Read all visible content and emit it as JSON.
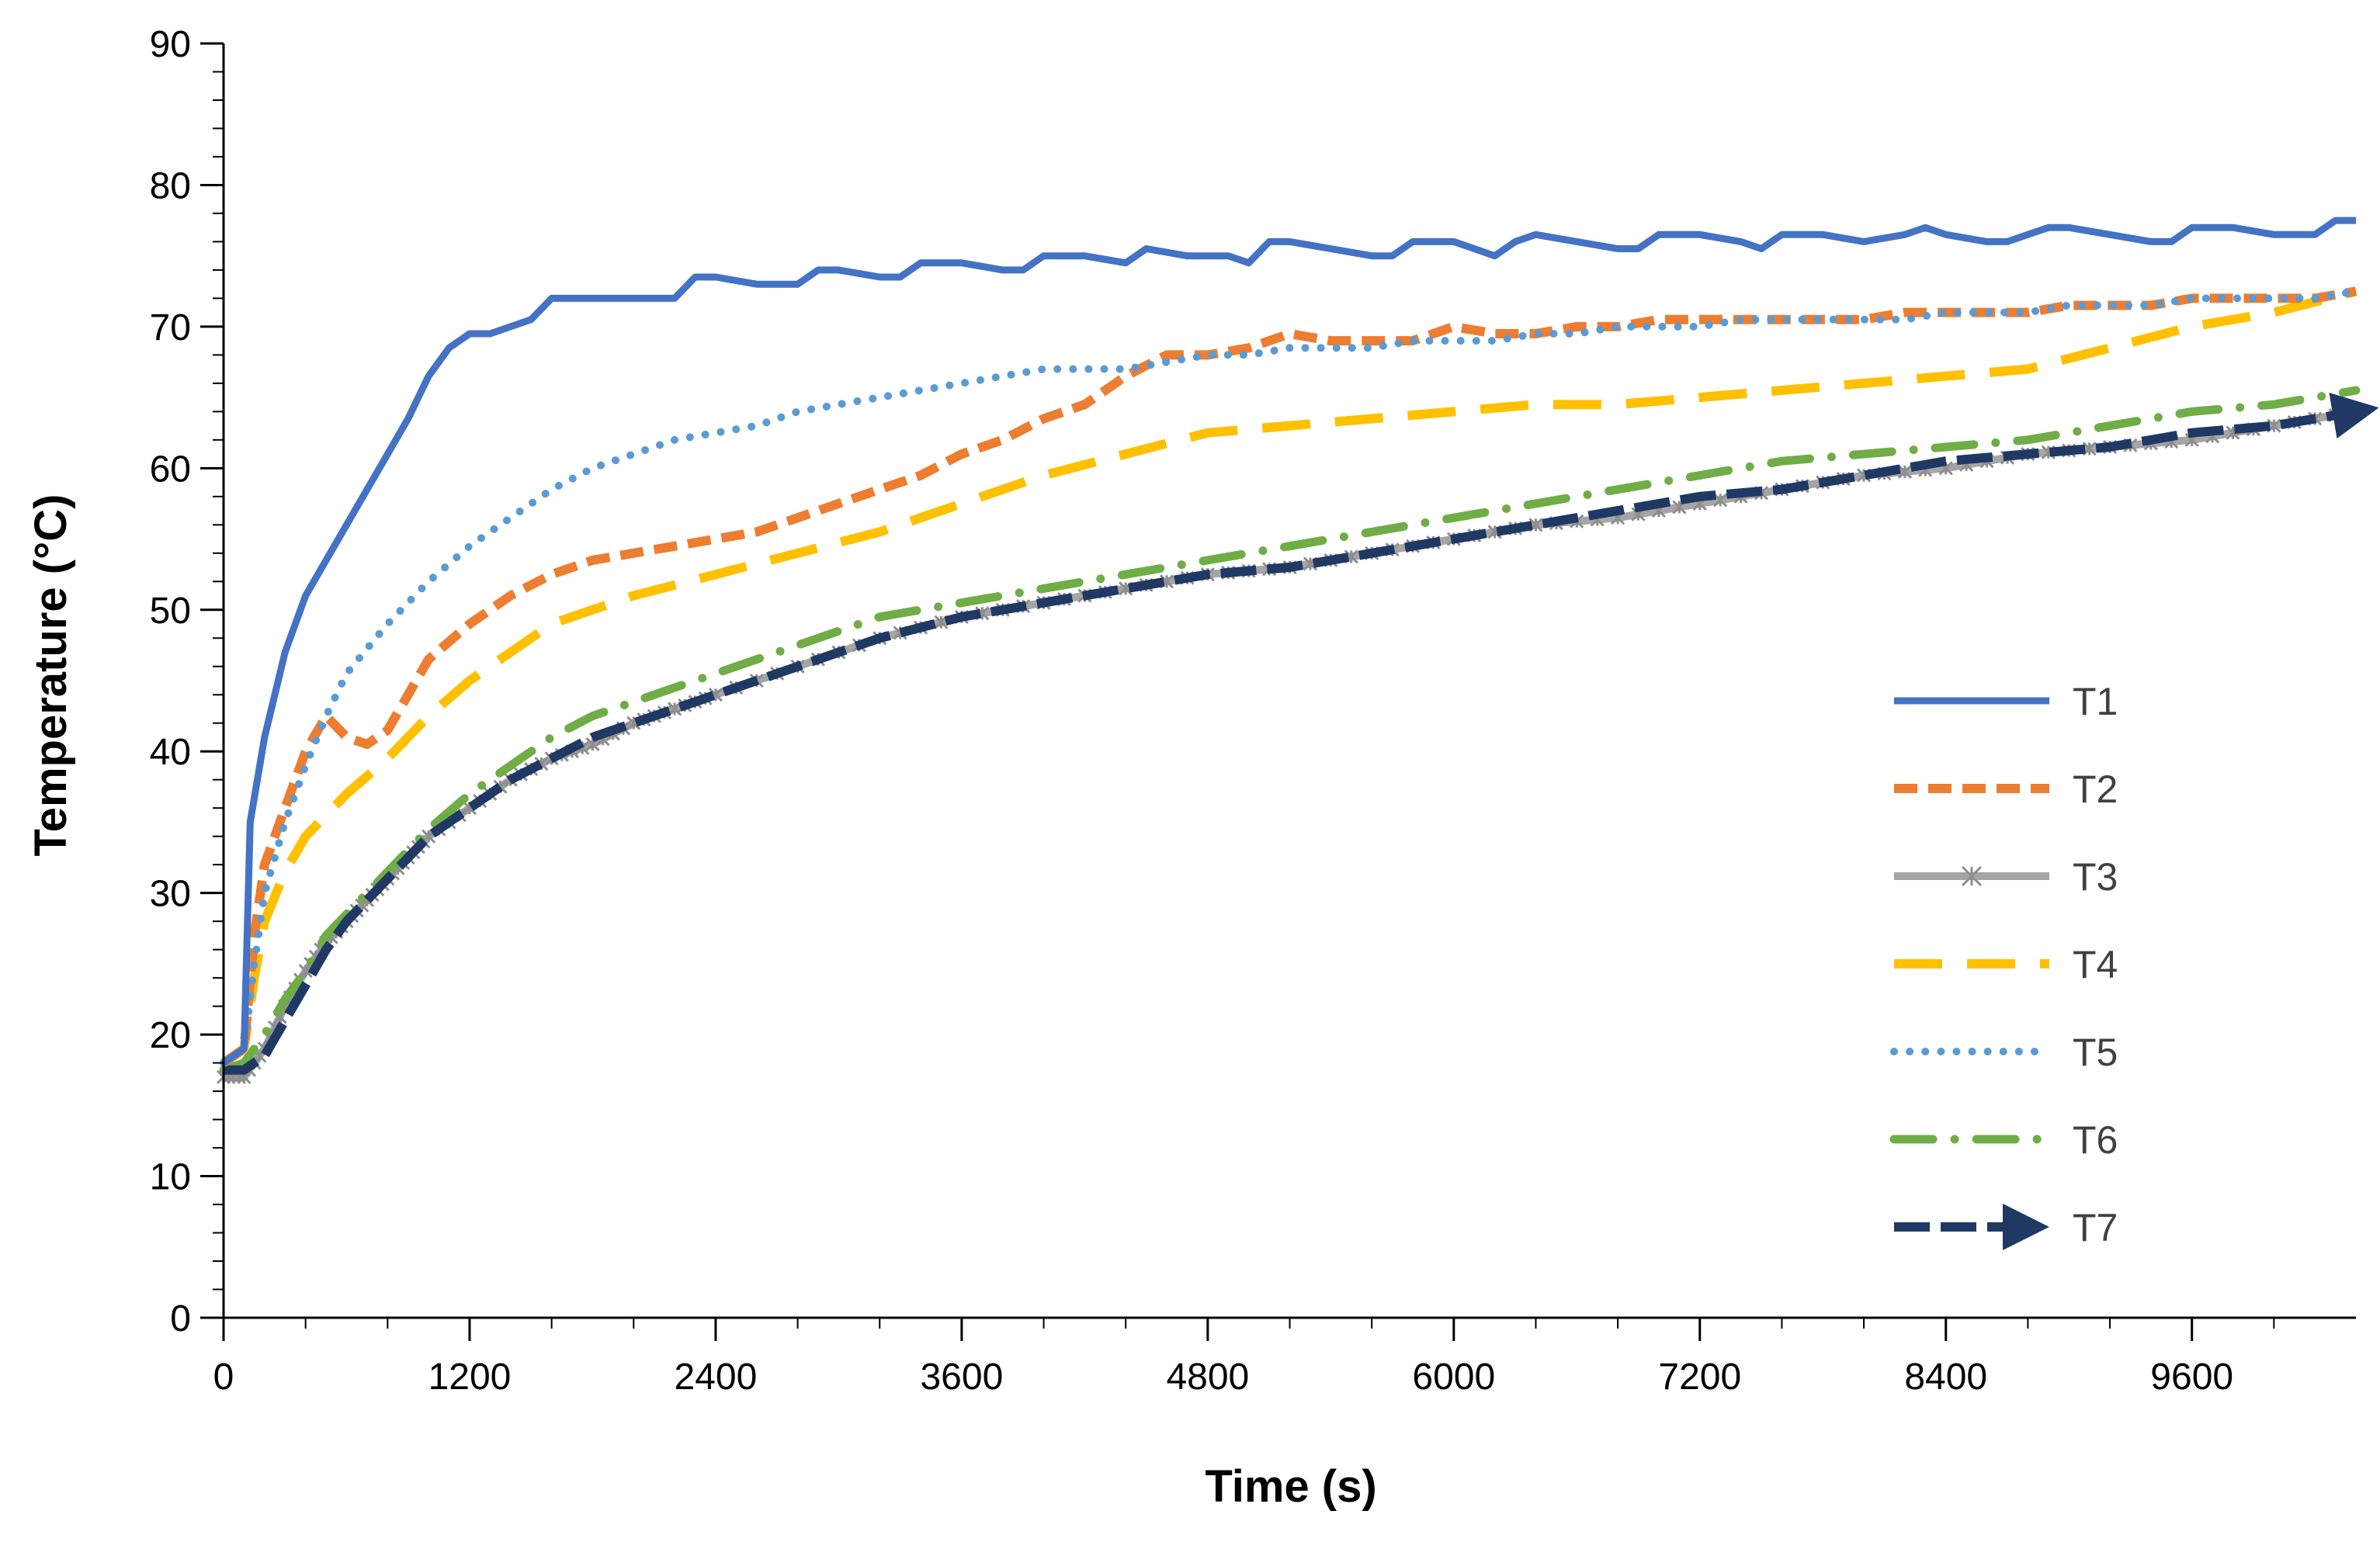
{
  "chart_data": {
    "type": "line",
    "title": "",
    "xlabel": "Time (s)",
    "ylabel": "Temperature (°C)",
    "xlim": [
      0,
      10400
    ],
    "ylim": [
      0,
      90
    ],
    "xticks": [
      0,
      1200,
      2400,
      3600,
      4800,
      6000,
      7200,
      8400,
      9600
    ],
    "yticks": [
      0,
      10,
      20,
      30,
      40,
      50,
      60,
      70,
      80,
      90
    ],
    "xtick_labels": [
      "0",
      "1200",
      "2400",
      "3600",
      "4800",
      "6000",
      "7200",
      "8400",
      "9600"
    ],
    "ytick_labels": [
      "0",
      "10",
      "20",
      "30",
      "40",
      "50",
      "60",
      "70",
      "80",
      "90"
    ],
    "grid": false,
    "legend_position": "right",
    "series": [
      {
        "name": "T1",
        "color": "#4472C4",
        "style": "solid",
        "marker": "none",
        "x": [
          0,
          100,
          130,
          200,
          300,
          400,
          500,
          600,
          700,
          800,
          900,
          1000,
          1100,
          1200,
          1300,
          1400,
          1500,
          1600,
          1700,
          1800,
          2000,
          2200,
          2300,
          2400,
          2600,
          2800,
          2900,
          3000,
          3200,
          3300,
          3400,
          3600,
          3800,
          3900,
          4000,
          4200,
          4400,
          4500,
          4700,
          4900,
          5000,
          5100,
          5200,
          5400,
          5600,
          5700,
          5800,
          6000,
          6100,
          6200,
          6300,
          6400,
          6600,
          6800,
          6900,
          7000,
          7200,
          7400,
          7500,
          7600,
          7700,
          7800,
          8000,
          8200,
          8300,
          8400,
          8600,
          8700,
          8800,
          8900,
          9000,
          9200,
          9400,
          9500,
          9600,
          9700,
          9800,
          10000,
          10100,
          10200,
          10300,
          10400
        ],
        "y": [
          18,
          19,
          35,
          41,
          47,
          51,
          53.5,
          56,
          58.5,
          61,
          63.5,
          66.5,
          68.5,
          69.5,
          69.5,
          70,
          70.5,
          72,
          72,
          72,
          72,
          72,
          73.5,
          73.5,
          73,
          73,
          74,
          74,
          73.5,
          73.5,
          74.5,
          74.5,
          74,
          74,
          75,
          75,
          74.5,
          75.5,
          75,
          75,
          74.5,
          76,
          76,
          75.5,
          75,
          75,
          76,
          76,
          75.5,
          75,
          76,
          76.5,
          76,
          75.5,
          75.5,
          76.5,
          76.5,
          76,
          75.5,
          76.5,
          76.5,
          76.5,
          76,
          76.5,
          77,
          76.5,
          76,
          76,
          76.5,
          77,
          77,
          76.5,
          76,
          76,
          77,
          77,
          77,
          76.5,
          76.5,
          76.5,
          77.5,
          77.5
        ]
      },
      {
        "name": "T2",
        "color": "#ED7D31",
        "style": "dashed",
        "marker": "none",
        "x": [
          0,
          100,
          150,
          200,
          300,
          400,
          500,
          600,
          700,
          800,
          900,
          1000,
          1200,
          1400,
          1600,
          1800,
          2000,
          2200,
          2400,
          2600,
          2800,
          3000,
          3200,
          3400,
          3600,
          3800,
          4000,
          4200,
          4400,
          4600,
          4800,
          5000,
          5200,
          5400,
          5600,
          5800,
          6000,
          6200,
          6400,
          6600,
          6800,
          7000,
          7200,
          7400,
          7600,
          7800,
          8000,
          8200,
          8400,
          8600,
          8800,
          9000,
          9200,
          9400,
          9600,
          9800,
          10000,
          10200,
          10400
        ],
        "y": [
          18,
          19,
          27,
          32,
          36,
          40,
          42.5,
          41,
          40.5,
          41.5,
          44,
          46.5,
          49,
          51,
          52.5,
          53.5,
          54,
          54.5,
          55,
          55.5,
          56.5,
          57.5,
          58.5,
          59.5,
          61,
          62,
          63.5,
          64.5,
          66.5,
          68,
          68,
          68.5,
          69.5,
          69,
          69,
          69,
          70,
          69.5,
          69.5,
          70,
          70,
          70.5,
          70.5,
          70.5,
          70.5,
          70.5,
          70.5,
          71,
          71,
          71,
          71,
          71.5,
          71.5,
          71.5,
          72,
          72,
          72,
          72,
          72.5
        ]
      },
      {
        "name": "T3",
        "color": "#A5A5A5",
        "style": "solid-star",
        "marker": "star",
        "x": [
          0,
          100,
          200,
          300,
          400,
          500,
          600,
          700,
          800,
          900,
          1000,
          1200,
          1400,
          1600,
          1800,
          2000,
          2200,
          2400,
          2800,
          3200,
          3600,
          4000,
          4400,
          4800,
          5200,
          5600,
          6000,
          6400,
          6800,
          7200,
          7600,
          8000,
          8400,
          8800,
          9200,
          9600,
          10000,
          10400
        ],
        "y": [
          17,
          17,
          19,
          22,
          24.5,
          26.5,
          28,
          29.5,
          31,
          32.5,
          34,
          36,
          38,
          39.5,
          40.5,
          42,
          43,
          44,
          46,
          48,
          49.5,
          50.5,
          51.5,
          52.5,
          53,
          54,
          55,
          56,
          56.5,
          57.5,
          58.5,
          59.5,
          60,
          61,
          61.5,
          62,
          63,
          64
        ]
      },
      {
        "name": "T4",
        "color": "#FFC000",
        "style": "long-dash",
        "marker": "none",
        "x": [
          0,
          100,
          150,
          200,
          300,
          400,
          600,
          800,
          1000,
          1200,
          1400,
          1600,
          1800,
          2000,
          2400,
          2800,
          3200,
          3600,
          4000,
          4400,
          4800,
          5200,
          5600,
          6000,
          6400,
          6800,
          7200,
          7600,
          8000,
          8400,
          8800,
          9200,
          9600,
          10000,
          10400
        ],
        "y": [
          18,
          19,
          24,
          28,
          31.5,
          34,
          37,
          39.5,
          42.5,
          45,
          47,
          49,
          50,
          51,
          52.5,
          54,
          55.5,
          57.5,
          59.5,
          61,
          62.5,
          63,
          63.5,
          64,
          64.5,
          64.5,
          65,
          65.5,
          66,
          66.5,
          67,
          68.5,
          70,
          71,
          72.5
        ]
      },
      {
        "name": "T5",
        "color": "#5B9BD5",
        "style": "dotted",
        "marker": "none",
        "x": [
          0,
          100,
          150,
          200,
          300,
          400,
          500,
          600,
          800,
          1000,
          1200,
          1400,
          1600,
          1800,
          2000,
          2200,
          2400,
          2600,
          2800,
          3000,
          3200,
          3400,
          3600,
          3800,
          4000,
          4200,
          4400,
          4600,
          4800,
          5000,
          5200,
          5400,
          5600,
          5800,
          6000,
          6200,
          6400,
          6600,
          6800,
          7000,
          7200,
          7400,
          7600,
          7800,
          8000,
          8200,
          8400,
          8600,
          8800,
          9000,
          9200,
          9400,
          9600,
          9800,
          10000,
          10200,
          10400
        ],
        "y": [
          18,
          19,
          25,
          30,
          35,
          39,
          42.5,
          45.5,
          49,
          52,
          54.5,
          56.5,
          58.5,
          60,
          61,
          62,
          62.5,
          63,
          64,
          64.5,
          65,
          65.5,
          66,
          66.5,
          67,
          67,
          67,
          67.5,
          68,
          68,
          68.5,
          68.5,
          68.5,
          69,
          69,
          69,
          69.5,
          69.5,
          70,
          70,
          70,
          70.5,
          70.5,
          70.5,
          70.5,
          70.5,
          71,
          71,
          71,
          71.5,
          71.5,
          71.5,
          72,
          72,
          72,
          72,
          72.5
        ]
      },
      {
        "name": "T6",
        "color": "#70AD47",
        "style": "dash-dot",
        "marker": "none",
        "x": [
          0,
          100,
          200,
          300,
          400,
          500,
          600,
          700,
          800,
          900,
          1000,
          1200,
          1400,
          1600,
          1800,
          2000,
          2200,
          2400,
          2800,
          3200,
          3600,
          4000,
          4400,
          4800,
          5200,
          5600,
          6000,
          6400,
          6800,
          7200,
          7600,
          8000,
          8400,
          8800,
          9200,
          9600,
          10000,
          10400
        ],
        "y": [
          17.5,
          18,
          20,
          22.5,
          24.5,
          27,
          28.5,
          30,
          31.5,
          33,
          34.5,
          37,
          39,
          41,
          42.5,
          43.5,
          44.5,
          45.5,
          47.5,
          49.5,
          50.5,
          51.5,
          52.5,
          53.5,
          54.5,
          55.5,
          56.5,
          57.5,
          58.5,
          59.5,
          60.5,
          61,
          61.5,
          62,
          63,
          64,
          64.5,
          65.5
        ]
      },
      {
        "name": "T7",
        "color": "#203864",
        "style": "long-dash-arrow",
        "marker": "arrow",
        "x": [
          0,
          100,
          200,
          300,
          400,
          500,
          600,
          700,
          800,
          900,
          1000,
          1200,
          1400,
          1600,
          1800,
          2000,
          2200,
          2400,
          2800,
          3200,
          3600,
          4000,
          4400,
          4800,
          5200,
          5600,
          6000,
          6400,
          6800,
          7200,
          7600,
          8000,
          8400,
          8800,
          9200,
          9600,
          10000,
          10400
        ],
        "y": [
          17.5,
          17.5,
          18.5,
          21,
          23.5,
          26,
          28,
          29.5,
          31,
          32.5,
          34,
          36,
          38,
          39.5,
          41,
          42,
          43,
          44,
          46,
          48,
          49.5,
          50.5,
          51.5,
          52.5,
          53,
          54,
          55,
          56,
          57,
          58,
          58.5,
          59.5,
          60.5,
          61,
          61.5,
          62.5,
          63,
          64
        ]
      }
    ]
  }
}
